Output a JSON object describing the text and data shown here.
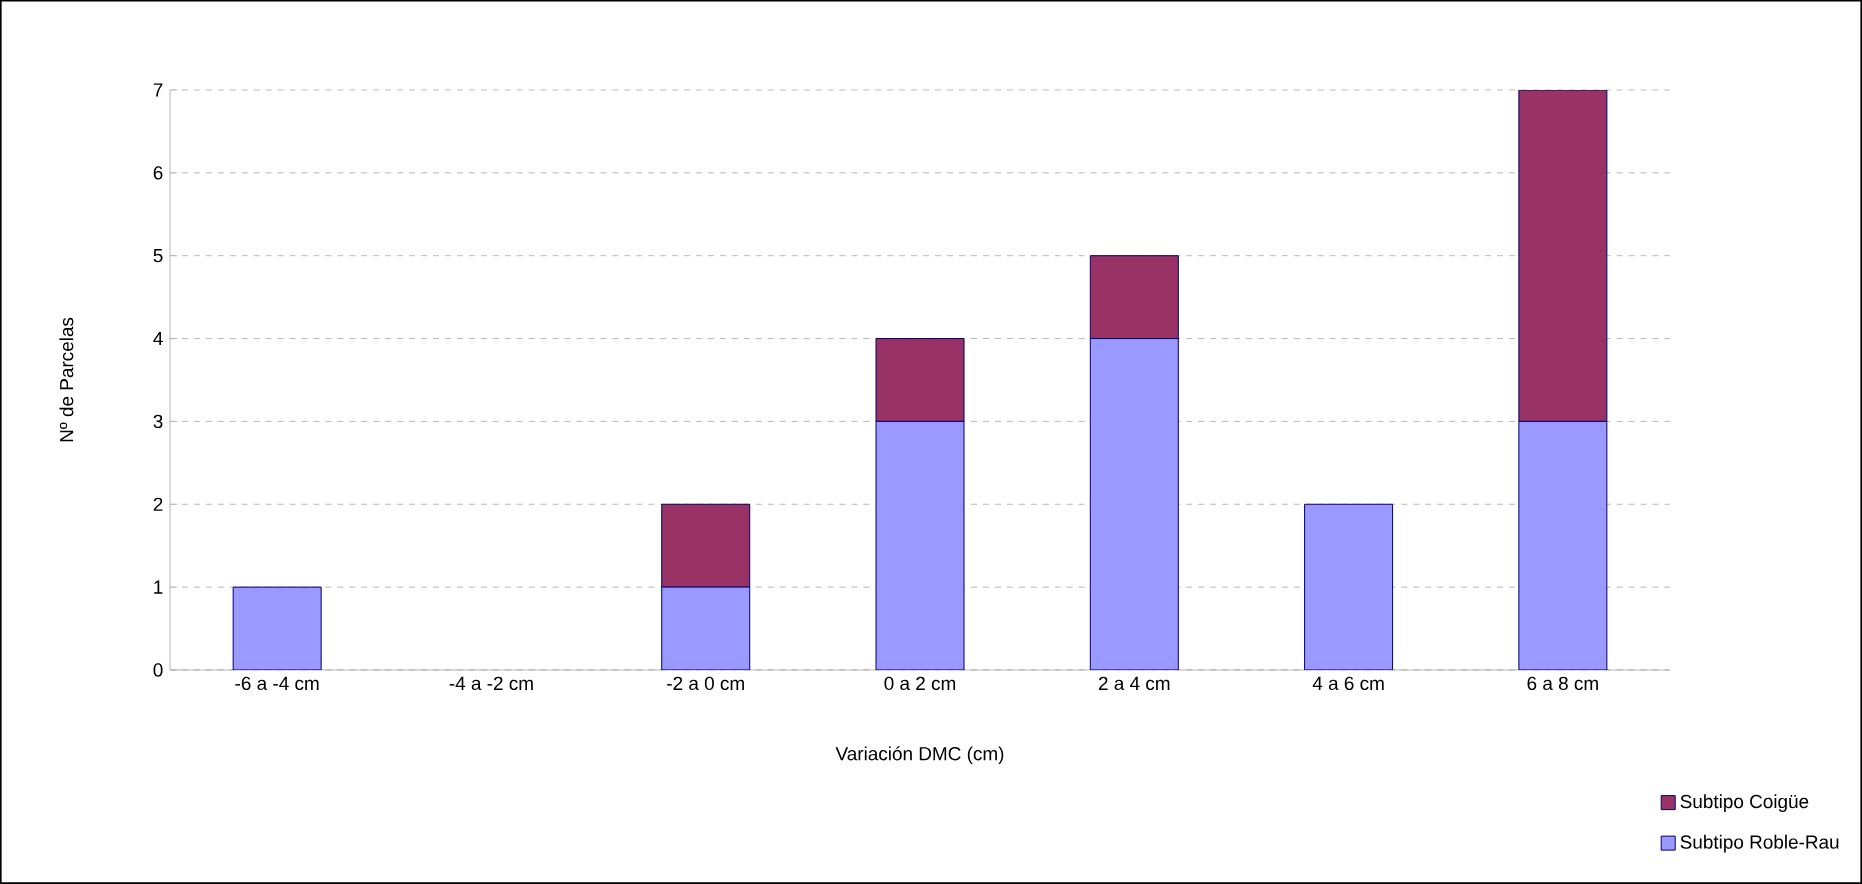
{
  "chart_data": {
    "type": "bar",
    "stacked": true,
    "xlabel": "Variación DMC (cm)",
    "ylabel": "Nº de Parcelas",
    "categories": [
      "-6 a -4 cm",
      "-4 a -2 cm",
      "-2 a 0 cm",
      "0 a 2 cm",
      "2 a 4 cm",
      "4 a 6 cm",
      "6 a 8 cm"
    ],
    "series": [
      {
        "name": "Subtipo Roble-Rau",
        "color": "#9999ff",
        "values": [
          1,
          0,
          1,
          3,
          4,
          2,
          3
        ]
      },
      {
        "name": "Subtipo Coigüe",
        "color": "#993366",
        "values": [
          0,
          0,
          1,
          1,
          1,
          0,
          4
        ]
      }
    ],
    "ylim": [
      0,
      7
    ],
    "yticks": [
      0,
      1,
      2,
      3,
      4,
      5,
      6,
      7
    ],
    "grid": "y",
    "legend": "bottom right"
  }
}
